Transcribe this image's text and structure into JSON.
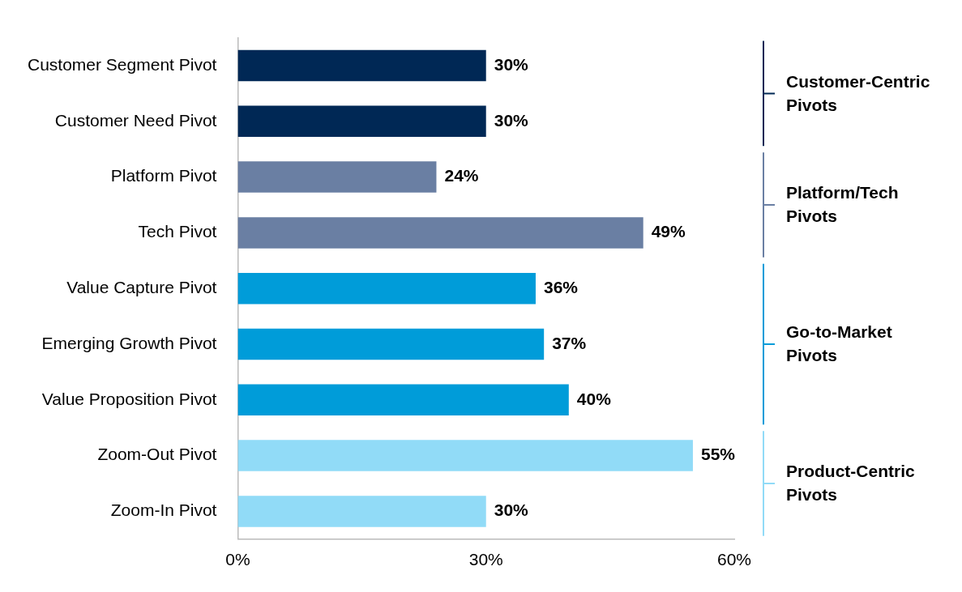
{
  "chart_data": {
    "type": "bar",
    "orientation": "horizontal",
    "categories": [
      "Customer Segment Pivot",
      "Customer Need Pivot",
      "Platform Pivot",
      "Tech Pivot",
      "Value Capture Pivot",
      "Emerging Growth Pivot",
      "Value Proposition Pivot",
      "Zoom-Out Pivot",
      "Zoom-In Pivot"
    ],
    "values": [
      30,
      30,
      24,
      49,
      36,
      37,
      40,
      55,
      30
    ],
    "colors": [
      "#002855",
      "#002855",
      "#6a7fa3",
      "#6a7fa3",
      "#009cd9",
      "#009cd9",
      "#009cd9",
      "#91dbf7",
      "#91dbf7"
    ],
    "value_labels": [
      "30%",
      "30%",
      "24%",
      "49%",
      "36%",
      "37%",
      "40%",
      "55%",
      "30%"
    ],
    "xlim": [
      0,
      60
    ],
    "xticks": [
      {
        "value": 0,
        "label": "0%"
      },
      {
        "value": 30,
        "label": "30%"
      },
      {
        "value": 60,
        "label": "60%"
      }
    ],
    "annotations": [
      "Customer-Centric Pivots",
      "Platform/Tech Pivots",
      "Go-to-Market Pivots",
      "Product-Centric Pivots"
    ],
    "grid": false,
    "legend": false
  }
}
